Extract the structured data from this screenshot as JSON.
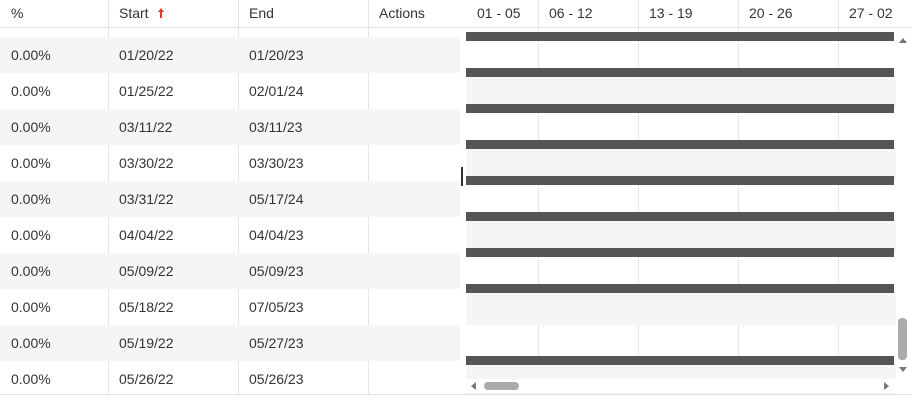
{
  "columns": [
    "%",
    "Start",
    "End",
    "Actions"
  ],
  "timeline": [
    "01 - 05",
    "06 - 12",
    "13 - 19",
    "20 - 26",
    "27 - 02"
  ],
  "rows": [
    [
      "0.00%",
      "01/20/22",
      "01/20/23"
    ],
    [
      "0.00%",
      "01/25/22",
      "02/01/24"
    ],
    [
      "0.00%",
      "03/11/22",
      "03/11/23"
    ],
    [
      "0.00%",
      "03/30/22",
      "03/30/23"
    ],
    [
      "0.00%",
      "03/31/22",
      "05/17/24"
    ],
    [
      "0.00%",
      "04/04/22",
      "04/04/23"
    ],
    [
      "0.00%",
      "05/09/22",
      "05/09/23"
    ],
    [
      "0.00%",
      "05/18/22",
      "07/05/23"
    ],
    [
      "0.00%",
      "05/19/22",
      "05/27/23"
    ],
    [
      "0.00%",
      "05/26/22",
      "05/26/23"
    ]
  ]
}
